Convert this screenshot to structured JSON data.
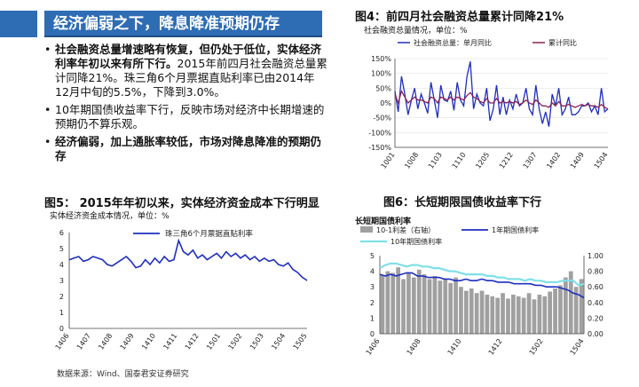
{
  "banner": {
    "title": "经济偏弱之下，降息降准预期仍存"
  },
  "bullets": [
    {
      "bold": "社会融资总量增速略有恢复，但仍处于低位，实体经济利率年初以来有所下行。",
      "text": "2015年前四月社会融资总量累计同降21%。珠三角6个月票据直贴利率已由2014年12月中旬的5.5%，下降到3.0%。"
    },
    {
      "bold": "",
      "text": "10年期国债收益率下行，反映市场对经济中长期增速的预期仍不算乐观。"
    },
    {
      "bold": "经济偏弱，加上通胀率较低，市场对降息降准的预期仍存",
      "text": ""
    }
  ],
  "fig4": {
    "title": "图4：前四月社会融资总量累计同降21%",
    "subtitle": "社会融资总量情况，单位：%"
  },
  "fig5": {
    "title": "图5： 2015年年初以来，实体经济资金成本下行明显",
    "subtitle": "实体经济资金成本情况，单位：%"
  },
  "fig6": {
    "title": "图6：长短期限国债收益率下行",
    "subtitle": "长短期国债利率"
  },
  "source": "数据来源：Wind、国泰君安证券研究",
  "colors": {
    "banner": "#2e6db4",
    "blue": "#1f2fbf",
    "maroon": "#8b2252",
    "cyan": "#7fe0e6",
    "gray": "#a0a0a0"
  },
  "chart_data": [
    {
      "type": "line",
      "series": [
        {
          "name": "社会融资总量：单月同比",
          "values": [
            40,
            -30,
            90,
            30,
            -40,
            10,
            50,
            -20,
            30,
            0,
            -35,
            70,
            10,
            -50,
            60,
            10,
            5,
            40,
            -25,
            70,
            10,
            -10,
            90,
            140,
            -20,
            30,
            0,
            -10,
            50,
            -60,
            -20,
            60,
            -40,
            20,
            -40,
            10,
            -20,
            30,
            -10,
            0,
            50,
            -20,
            -40,
            60,
            -20,
            -70,
            -30,
            -80,
            30,
            -10,
            50,
            -40,
            -20,
            20,
            -40,
            -40,
            -30,
            -10,
            -10,
            0,
            -30,
            -10,
            -40,
            50,
            -30,
            -20
          ]
        },
        {
          "name": "累计同比",
          "values": [
            30,
            0,
            40,
            20,
            0,
            10,
            20,
            10,
            10,
            5,
            0,
            20,
            15,
            0,
            20,
            15,
            10,
            20,
            10,
            20,
            15,
            10,
            25,
            35,
            20,
            15,
            5,
            0,
            15,
            0,
            0,
            15,
            0,
            5,
            0,
            5,
            0,
            5,
            -5,
            0,
            10,
            0,
            -5,
            10,
            0,
            -10,
            -10,
            -15,
            0,
            -10,
            5,
            -10,
            -10,
            -5,
            -10,
            -15,
            -10,
            -5,
            -10,
            -5,
            -10,
            -10,
            -15,
            -5,
            -15,
            -20
          ]
        }
      ],
      "x_ticks": [
        "1001",
        "1008",
        "1103",
        "1110",
        "1205",
        "1212",
        "1307",
        "1402",
        "1409",
        "1504"
      ],
      "y_ticks": [
        "150%",
        "100%",
        "50%",
        "0%",
        "-50%",
        "-100%",
        "-150%"
      ],
      "ylim": [
        -150,
        150
      ],
      "legend": "top"
    },
    {
      "type": "line",
      "series": [
        {
          "name": "珠三角6个月票据直贴利率",
          "values": [
            4.3,
            4.4,
            4.5,
            4.2,
            4.3,
            4.5,
            4.4,
            4.3,
            4.0,
            3.9,
            4.1,
            4.3,
            4.5,
            4.2,
            3.8,
            3.9,
            4.3,
            4.0,
            4.4,
            4.1,
            4.5,
            4.2,
            4.3,
            5.5,
            4.8,
            4.6,
            4.9,
            4.4,
            4.6,
            4.3,
            4.5,
            4.7,
            4.4,
            4.8,
            4.5,
            4.7,
            4.4,
            4.6,
            4.3,
            4.5,
            4.2,
            4.4,
            4.2,
            4.3,
            4.0,
            3.9,
            4.1,
            3.7,
            3.5,
            3.2,
            3.0
          ]
        }
      ],
      "x_ticks": [
        "1406",
        "1407",
        "1408",
        "1409",
        "1410",
        "1411",
        "1412",
        "1501",
        "1502",
        "1503",
        "1504",
        "1505"
      ],
      "y_ticks": [
        "6",
        "5",
        "4",
        "3",
        "2",
        "1",
        "0"
      ],
      "ylim": [
        0,
        6
      ],
      "legend": "top"
    },
    {
      "type": "line",
      "series": [
        {
          "name": "10-1利差（右轴）",
          "axis": "right",
          "values": [
            0.75,
            0.8,
            0.78,
            0.85,
            0.7,
            0.78,
            0.72,
            0.82,
            0.76,
            0.7,
            0.74,
            0.68,
            0.7,
            0.65,
            0.72,
            0.6,
            0.55,
            0.58,
            0.52,
            0.55,
            0.5,
            0.48,
            0.46,
            0.52,
            0.45,
            0.5,
            0.48,
            0.46,
            0.52,
            0.44,
            0.5,
            0.48,
            0.54,
            0.58,
            0.62,
            0.72,
            0.8,
            0.6,
            0.7
          ]
        },
        {
          "name": "1年期国债利率",
          "axis": "left",
          "values": [
            3.8,
            3.7,
            3.8,
            3.7,
            3.8,
            3.9,
            3.9,
            3.7,
            3.7,
            3.6,
            3.6,
            3.6,
            3.5,
            3.5,
            3.4,
            3.4,
            3.5,
            3.4,
            3.4,
            3.5,
            3.4,
            3.4,
            3.3,
            3.3,
            3.3,
            3.2,
            3.2,
            3.2,
            3.2,
            3.1,
            3.1,
            3.0,
            3.0,
            3.0,
            2.9,
            2.8,
            2.6,
            2.5,
            2.3
          ]
        },
        {
          "name": "10年期国债利率",
          "axis": "left",
          "values": [
            4.2,
            4.4,
            4.5,
            4.5,
            4.4,
            4.3,
            4.4,
            4.4,
            4.3,
            4.3,
            4.2,
            4.2,
            4.1,
            4.0,
            4.0,
            3.9,
            3.8,
            3.8,
            3.8,
            3.8,
            3.7,
            3.7,
            3.6,
            3.6,
            3.5,
            3.5,
            3.5,
            3.4,
            3.5,
            3.4,
            3.4,
            3.3,
            3.3,
            3.3,
            3.4,
            3.4,
            3.4,
            3.1,
            3.2
          ]
        }
      ],
      "x_ticks": [
        "1406",
        "1408",
        "1410",
        "1412",
        "1502",
        "1504"
      ],
      "y_ticks": [
        "5",
        "4",
        "3",
        "2",
        "1",
        "0"
      ],
      "y2_ticks": [
        "1.00",
        "0.80",
        "0.60",
        "0.40",
        "0.20",
        "0.00"
      ],
      "ylim": [
        0,
        5
      ],
      "y2lim": [
        0,
        1
      ],
      "legend": "top"
    }
  ]
}
